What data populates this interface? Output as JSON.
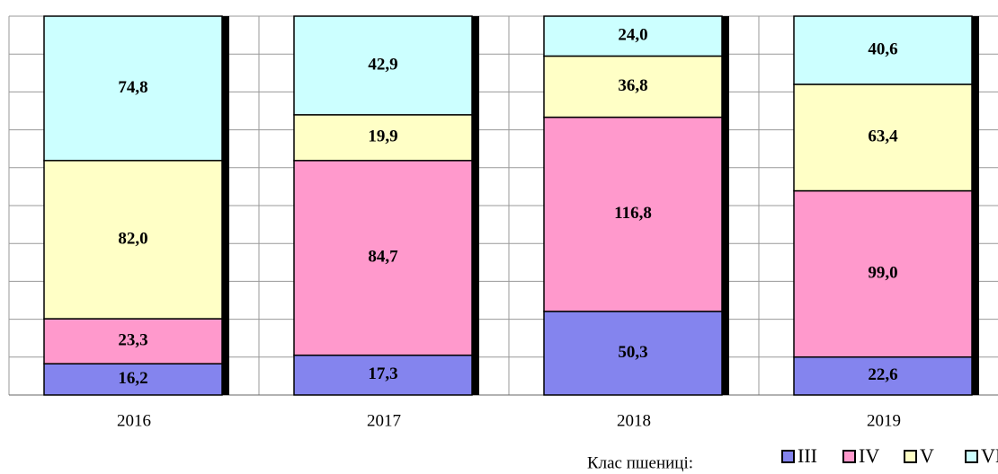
{
  "chart_data": {
    "type": "bar",
    "stacking": "percent",
    "categories": [
      "2016",
      "2017",
      "2018",
      "2019"
    ],
    "series": [
      {
        "name": "III",
        "color": "#8484ee",
        "values": [
          16.2,
          17.3,
          50.3,
          22.6
        ],
        "value_labels": [
          "16,2",
          "17,3",
          "50,3",
          "22,6"
        ]
      },
      {
        "name": "IV",
        "color": "#ff99cc",
        "values": [
          23.3,
          84.7,
          116.8,
          99.0
        ],
        "value_labels": [
          "23,3",
          "84,7",
          "116,8",
          "99,0"
        ]
      },
      {
        "name": "V",
        "color": "#ffffc6",
        "values": [
          82.0,
          19.9,
          36.8,
          63.4
        ],
        "value_labels": [
          "82,0",
          "19,9",
          "36,8",
          "63,4"
        ]
      },
      {
        "name": "VI",
        "color": "#ccffff",
        "values": [
          74.8,
          42.9,
          24.0,
          40.6
        ],
        "value_labels": [
          "74,8",
          "42,9",
          "24,0",
          "40,6"
        ]
      }
    ],
    "legend_title": "Клас пшениці:",
    "ylim": [
      0,
      100
    ],
    "yticks": [
      0,
      10,
      20,
      30,
      40,
      50,
      60,
      70,
      80,
      90,
      100
    ],
    "grid": true
  }
}
